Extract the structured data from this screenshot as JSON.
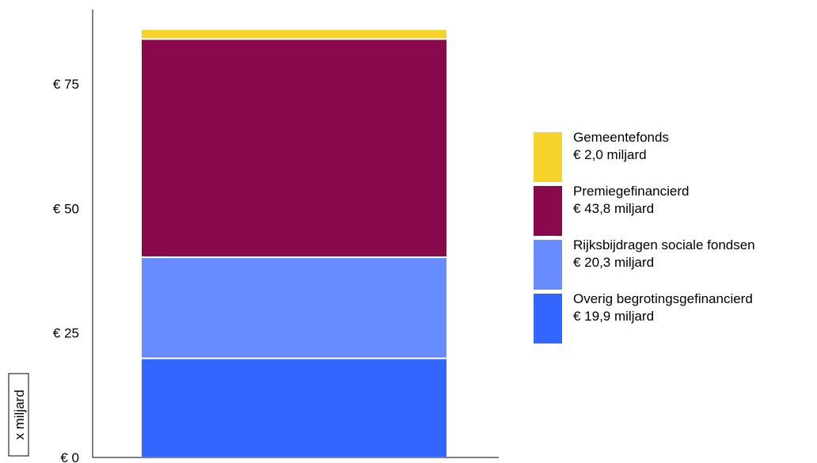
{
  "chart_data": {
    "type": "bar",
    "stacked": true,
    "categories": [
      ""
    ],
    "ylabel": "x miljard",
    "ylim": [
      0,
      90
    ],
    "yticks": [
      0,
      25,
      50,
      75
    ],
    "ytick_labels": [
      "€ 0",
      "€ 25",
      "€ 50",
      "€ 75"
    ],
    "grid": false,
    "legend_position": "right",
    "series": [
      {
        "name": "Overig begrotingsgefinancierd",
        "value_label": "€ 19,9 miljard",
        "values": [
          19.9
        ],
        "color": "#3366ff"
      },
      {
        "name": "Rijksbijdragen sociale fondsen",
        "value_label": "€ 20,3 miljard",
        "values": [
          20.3
        ],
        "color": "#668cff"
      },
      {
        "name": "Premiegefinancierd",
        "value_label": "€ 43,8 miljard",
        "values": [
          43.8
        ],
        "color": "#8a084c"
      },
      {
        "name": "Gemeentefonds",
        "value_label": "€ 2,0 miljard",
        "values": [
          2.0
        ],
        "color": "#f5d32a"
      }
    ]
  }
}
